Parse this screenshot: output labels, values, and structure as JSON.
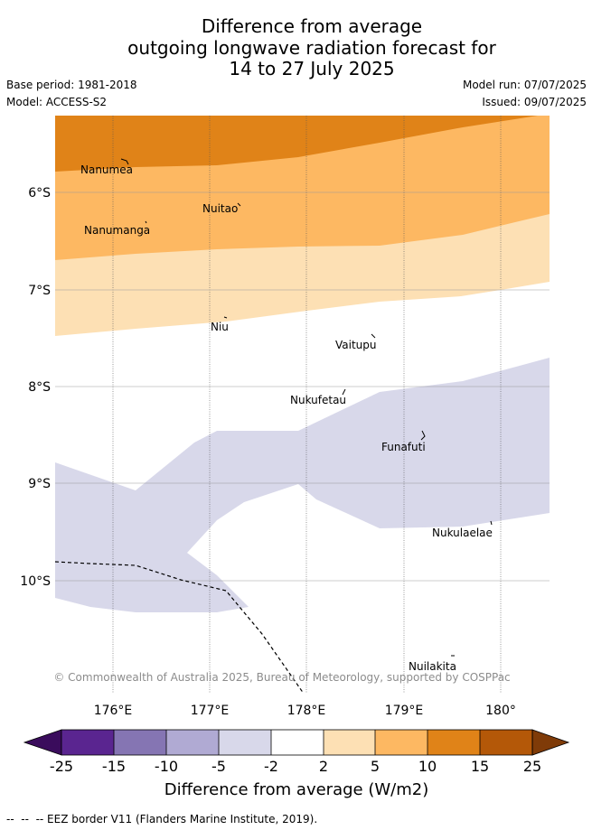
{
  "title": {
    "line1": "Difference from average",
    "line2": "outgoing longwave radiation forecast for",
    "line3": "14 to 27 July 2025"
  },
  "meta": {
    "base_period": "Base period: 1981-2018",
    "model": "Model: ACCESS-S2",
    "model_run": "Model run: 07/07/2025",
    "issued": "Issued: 09/07/2025"
  },
  "map": {
    "lon_labels": [
      "176°E",
      "177°E",
      "178°E",
      "179°E",
      "180°"
    ],
    "lat_labels": [
      "6°S",
      "7°S",
      "8°S",
      "9°S",
      "10°S"
    ],
    "places": [
      "Nanumea",
      "Nuitao",
      "Nanumanga",
      "Niu",
      "Vaitupu",
      "Nukufetau",
      "Funafuti",
      "Nukulaelae",
      "Nuilakita"
    ],
    "copyright": "© Commonwealth of Australia 2025, Bureau of Meteorology, supported by COSPPac"
  },
  "colorbar": {
    "ticks": [
      "-25",
      "-15",
      "-10",
      "-5",
      "-2",
      "2",
      "5",
      "10",
      "15",
      "25"
    ],
    "colors": [
      "#5a2590",
      "#8575b3",
      "#b0aad3",
      "#d8d8ea",
      "#ffffff",
      "#fde0b4",
      "#fdb862",
      "#e08318",
      "#b45808"
    ],
    "under_color": "#3a0c5c",
    "over_color": "#7f3b08",
    "label": "Difference from average (W/m2)"
  },
  "footer": {
    "legend_text": "--  --  -- EEZ border V11 (Flanders Marine Institute, 2019)."
  }
}
